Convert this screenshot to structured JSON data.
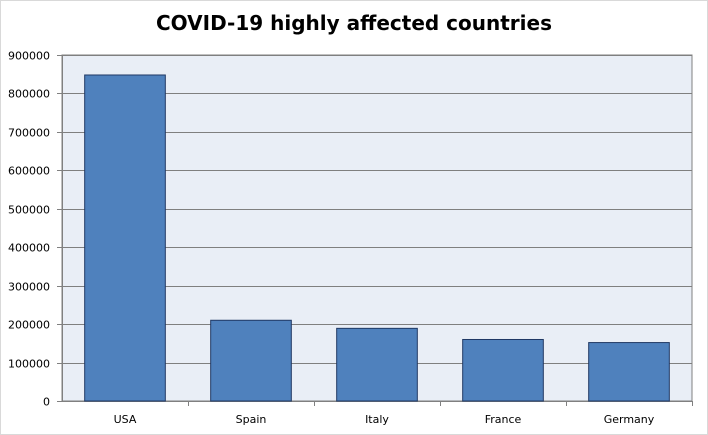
{
  "colors": {
    "bar": "#4f81bd",
    "bar_edge": "#1f3864",
    "plot_bg": "#e9eef6",
    "grid": "#7f7f7f"
  },
  "chart_data": {
    "type": "bar",
    "title": "COVID-19 highly affected countries",
    "categories": [
      "USA",
      "Spain",
      "Italy",
      "France",
      "Germany"
    ],
    "values": [
      848000,
      210000,
      189000,
      160000,
      152000
    ],
    "ylim": [
      0,
      900000
    ],
    "yticks": [
      "0",
      "100000",
      "200000",
      "300000",
      "400000",
      "500000",
      "600000",
      "700000",
      "800000",
      "900000"
    ],
    "grid": true
  }
}
